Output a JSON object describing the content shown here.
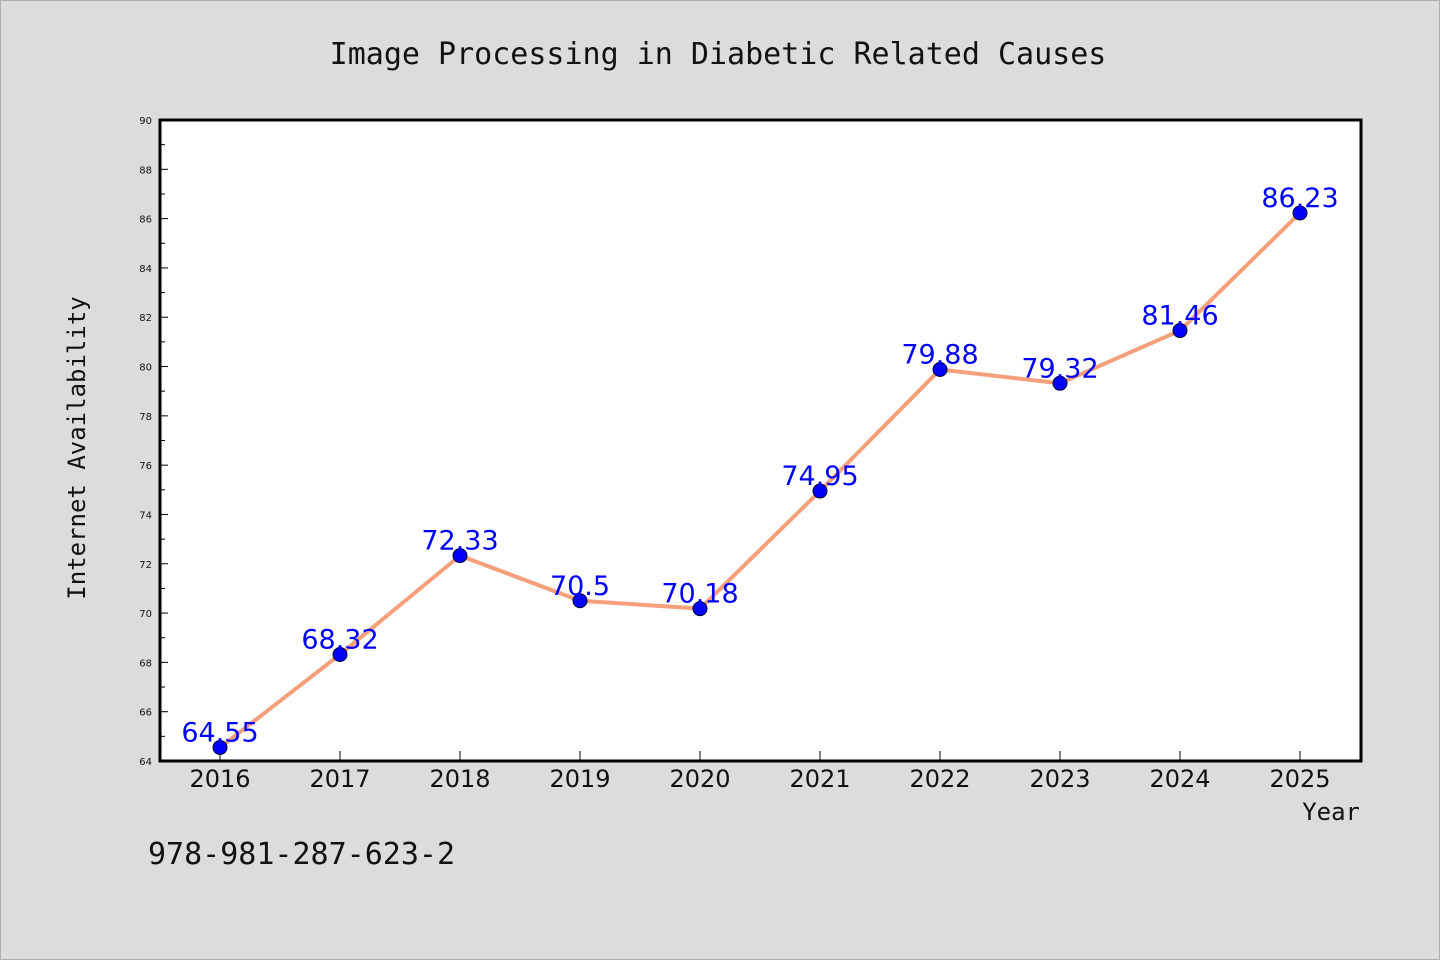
{
  "chart_data": {
    "type": "line",
    "title": "Image Processing in Diabetic Related Causes",
    "xlabel": "Year",
    "ylabel": "Internet Availability",
    "categories": [
      "2016",
      "2017",
      "2018",
      "2019",
      "2020",
      "2021",
      "2022",
      "2023",
      "2024",
      "2025"
    ],
    "series": [
      {
        "values": [
          64.55,
          68.32,
          72.33,
          70.5,
          70.18,
          74.95,
          79.88,
          79.32,
          81.46,
          86.23
        ]
      }
    ],
    "data_labels": [
      "64.55",
      "68.32",
      "72.33",
      "70.5",
      "70.18",
      "74.95",
      "79.88",
      "79.32",
      "81.46",
      "86.23"
    ],
    "ylim": [
      64,
      90
    ],
    "yticks": [
      64,
      66,
      68,
      70,
      72,
      74,
      76,
      78,
      80,
      82,
      84,
      86,
      88,
      90
    ],
    "grid": false,
    "colors": {
      "line": "#f5a07a",
      "marker": "#0000ff",
      "label": "#0000ff",
      "background": "#dcdcdc",
      "plot_bg": "#ffffff"
    }
  },
  "footer": {
    "isbn": "978-981-287-623-2"
  }
}
